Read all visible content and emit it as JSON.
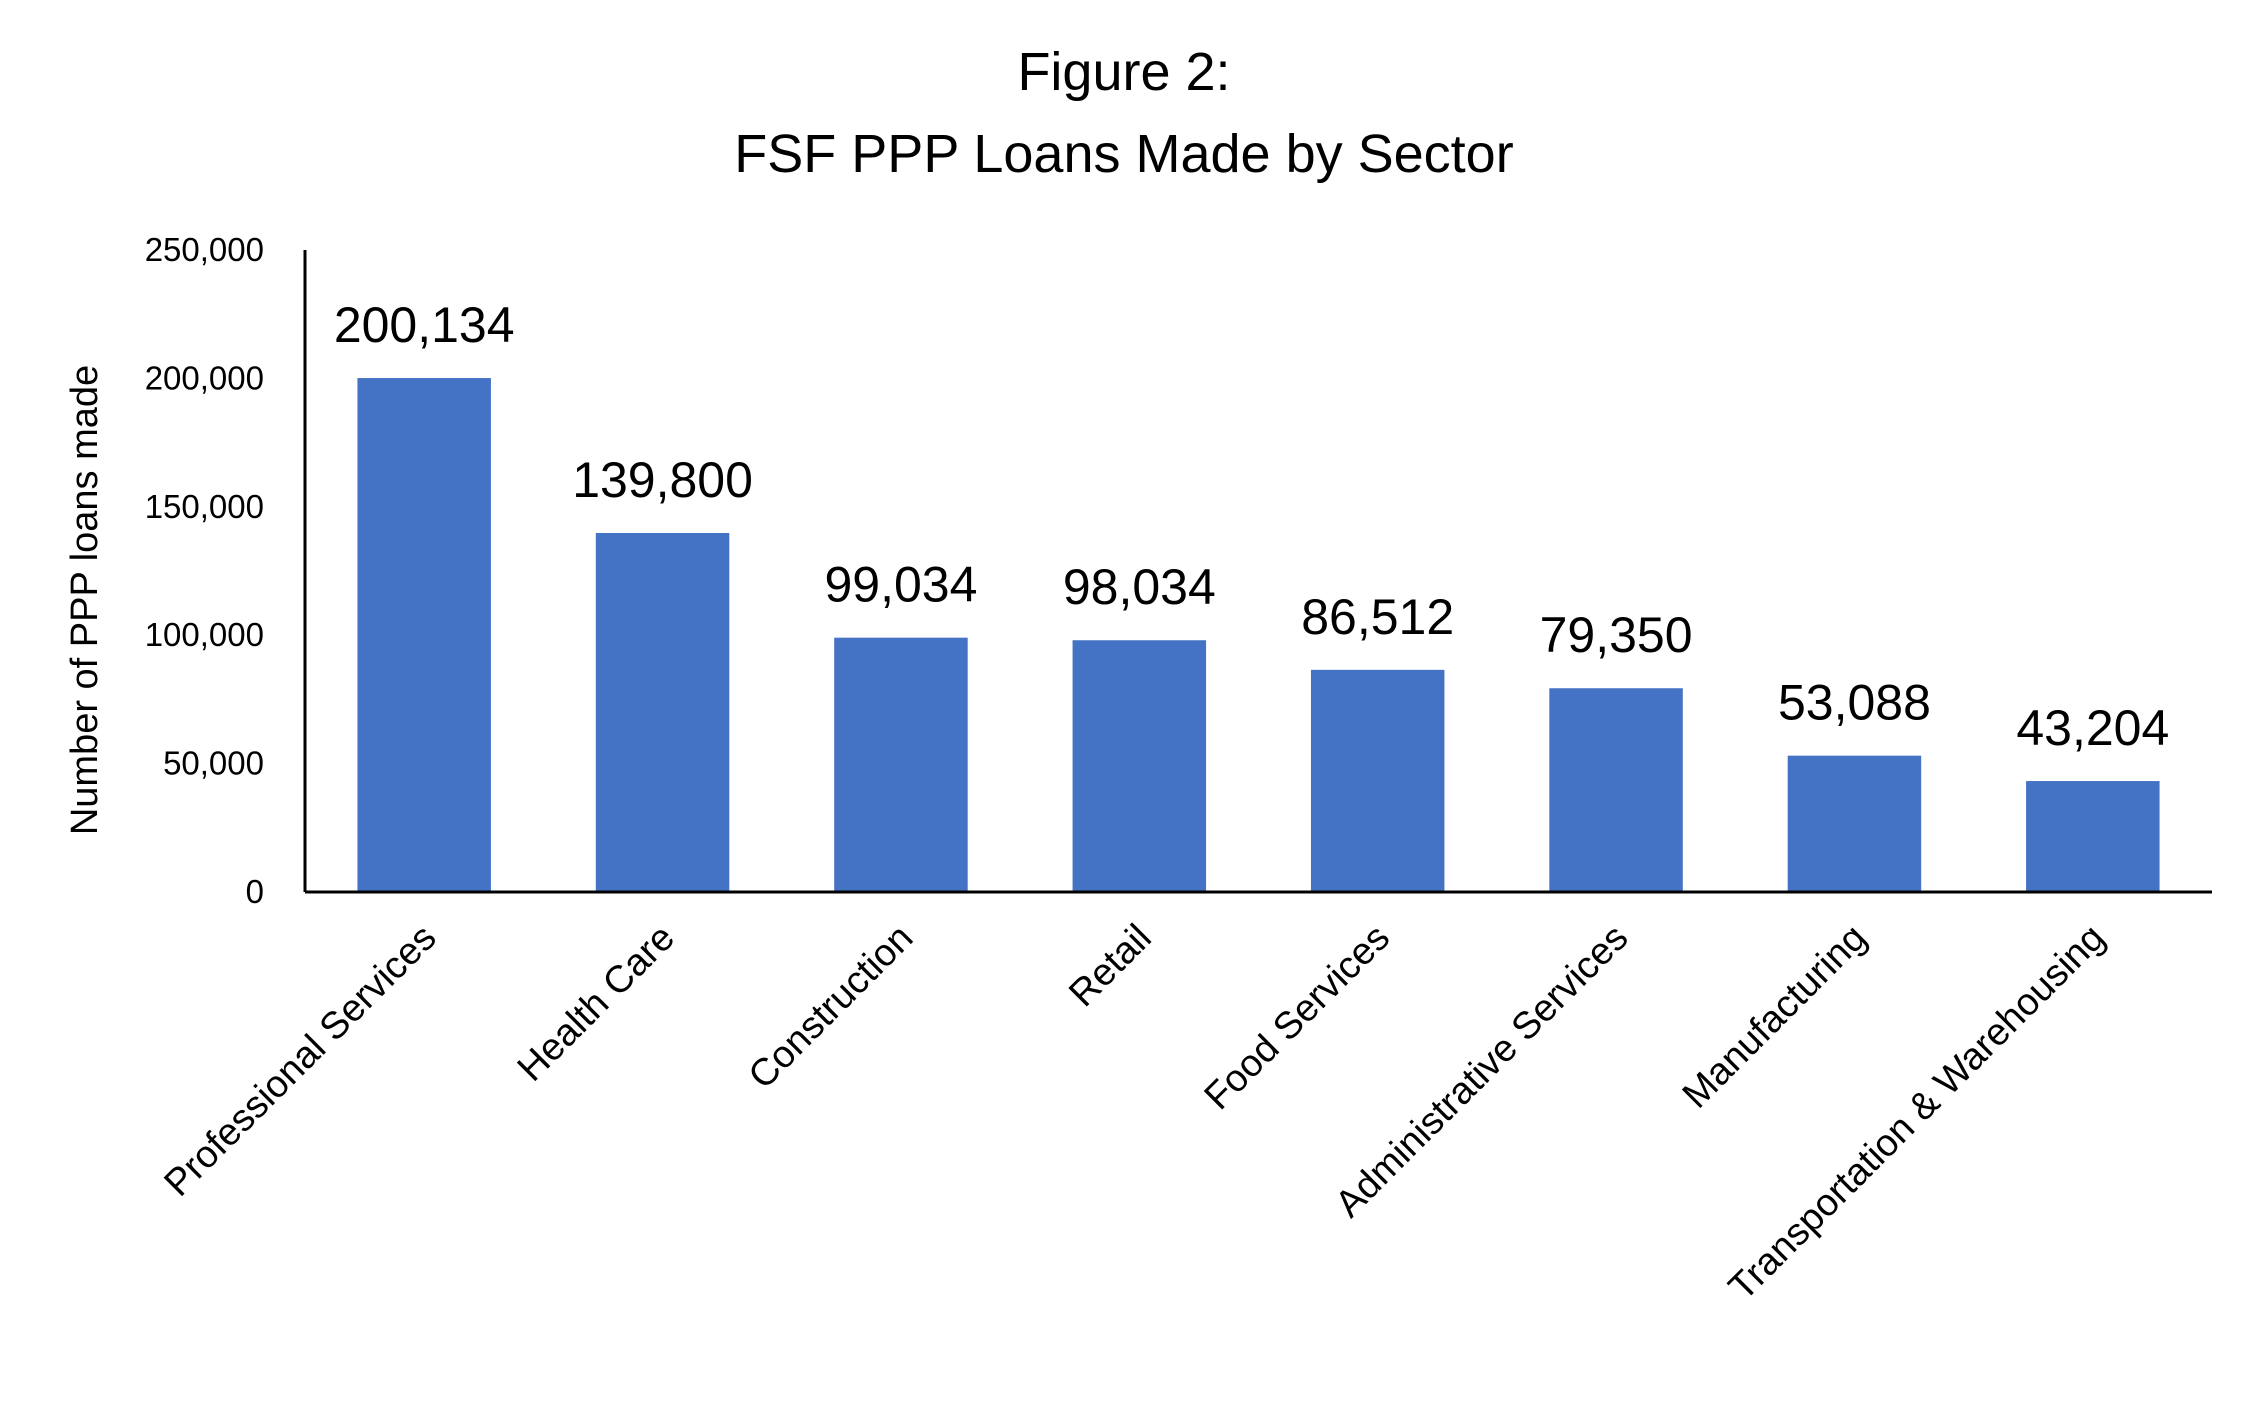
{
  "chart_data": {
    "type": "bar",
    "title": [
      "Figure 2:",
      "FSF PPP Loans Made by Sector"
    ],
    "ylabel": "Number of PPP loans made",
    "xlabel": "",
    "ylim": [
      0,
      250000
    ],
    "yticks": [
      0,
      50000,
      100000,
      150000,
      200000,
      250000
    ],
    "ytick_labels": [
      "0",
      "50,000",
      "100,000",
      "150,000",
      "200,000",
      "250,000"
    ],
    "grid": false,
    "bar_color": "#4472C4",
    "categories": [
      "Professional Services",
      "Health Care",
      "Construction",
      "Retail",
      "Food Services",
      "Administrative Services",
      "Manufacturing",
      "Transportation & Warehousing"
    ],
    "values": [
      200134,
      139800,
      99034,
      98034,
      86512,
      79350,
      53088,
      43204
    ],
    "data_labels": [
      "200,134",
      "139,800",
      "99,034",
      "98,034",
      "86,512",
      "79,350",
      "53,088",
      "43,204"
    ]
  }
}
